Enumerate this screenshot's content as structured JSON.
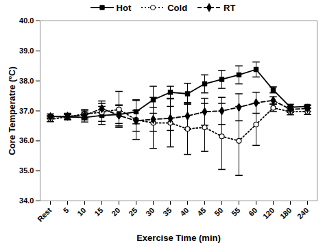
{
  "chart_data": {
    "type": "line",
    "x_label": "Exercise Time (min)",
    "y_label": "Core Temperatre (ºC)",
    "categories": [
      "Rest",
      "5",
      "10",
      "15",
      "20",
      "25",
      "30",
      "35",
      "40",
      "45",
      "50",
      "55",
      "60",
      "120",
      "180",
      "240"
    ],
    "ylim": [
      34,
      40
    ],
    "yticks": [
      {
        "value": 34,
        "label": "34.0"
      },
      {
        "value": 35,
        "label": "35.0"
      },
      {
        "value": 36,
        "label": "36.0"
      },
      {
        "value": 37,
        "label": "37.0"
      },
      {
        "value": 38,
        "label": "38.0"
      },
      {
        "value": 39,
        "label": "39.0"
      },
      {
        "value": 40,
        "label": "40.0"
      }
    ],
    "grid": false,
    "legend": "top",
    "series": [
      {
        "name": "Hot",
        "color": "#000000",
        "marker": "square",
        "line_style": "solid",
        "values": [
          36.82,
          36.8,
          36.78,
          36.85,
          36.88,
          36.97,
          37.37,
          37.62,
          37.57,
          37.9,
          38.05,
          38.2,
          38.38,
          37.7,
          37.12,
          37.15
        ],
        "errors": [
          0.08,
          0.08,
          0.15,
          0.3,
          0.3,
          0.4,
          0.45,
          0.2,
          0.35,
          0.3,
          0.3,
          0.3,
          0.25,
          0.1,
          0.1,
          0.05
        ]
      },
      {
        "name": "Cold",
        "color": "#000000",
        "marker": "circle-open",
        "line_style": "dotted",
        "values": [
          36.72,
          36.8,
          36.9,
          36.95,
          37.05,
          36.7,
          36.6,
          36.6,
          36.4,
          36.45,
          36.15,
          36.0,
          36.55,
          37.1,
          36.97,
          36.98
        ],
        "errors": [
          0.08,
          0.1,
          0.15,
          0.3,
          0.6,
          0.65,
          0.85,
          0.8,
          0.85,
          0.8,
          1.1,
          1.15,
          0.7,
          0.12,
          0.1,
          0.1
        ]
      },
      {
        "name": "RT",
        "color": "#000000",
        "marker": "diamond",
        "line_style": "dashed",
        "values": [
          36.8,
          36.82,
          36.85,
          37.08,
          36.85,
          36.67,
          36.72,
          36.75,
          36.83,
          36.97,
          37.0,
          37.12,
          37.27,
          37.35,
          37.05,
          37.08
        ],
        "errors": [
          0.05,
          0.1,
          0.15,
          0.25,
          0.35,
          0.35,
          0.4,
          0.4,
          0.45,
          0.45,
          0.45,
          0.45,
          0.35,
          0.12,
          0.1,
          0.1
        ]
      }
    ]
  }
}
